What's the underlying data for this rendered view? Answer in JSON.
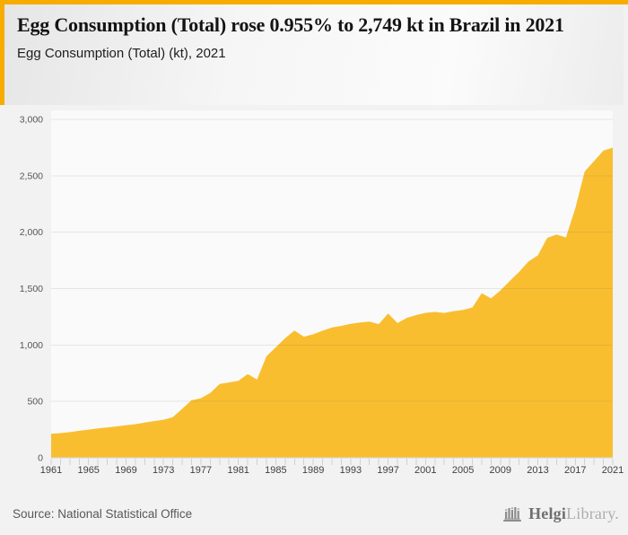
{
  "page": {
    "background_color": "#f2f2f2",
    "accent_color": "#f8ac00"
  },
  "header": {
    "title": "Egg Consumption (Total) rose 0.955% to 2,749 kt in Brazil in 2021",
    "subtitle": "Egg Consumption (Total) (kt), 2021"
  },
  "chart_data": {
    "type": "area",
    "title": "Egg Consumption (Total) (kt), 2021",
    "series_name": "Egg Consumption (Total)",
    "unit": "kt",
    "country": "Brazil",
    "x": [
      1961,
      1962,
      1963,
      1964,
      1965,
      1966,
      1967,
      1968,
      1969,
      1970,
      1971,
      1972,
      1973,
      1974,
      1975,
      1976,
      1977,
      1978,
      1979,
      1980,
      1981,
      1982,
      1983,
      1984,
      1985,
      1986,
      1987,
      1988,
      1989,
      1990,
      1991,
      1992,
      1993,
      1994,
      1995,
      1996,
      1997,
      1998,
      1999,
      2000,
      2001,
      2002,
      2003,
      2004,
      2005,
      2006,
      2007,
      2008,
      2009,
      2010,
      2011,
      2012,
      2013,
      2014,
      2015,
      2016,
      2017,
      2018,
      2019,
      2020,
      2021
    ],
    "values": [
      213,
      219,
      228,
      240,
      250,
      261,
      270,
      278,
      288,
      298,
      312,
      325,
      337,
      360,
      435,
      510,
      528,
      575,
      655,
      668,
      682,
      742,
      694,
      900,
      980,
      1060,
      1128,
      1073,
      1095,
      1127,
      1155,
      1170,
      1188,
      1200,
      1208,
      1185,
      1279,
      1195,
      1240,
      1265,
      1285,
      1293,
      1284,
      1300,
      1311,
      1332,
      1459,
      1413,
      1484,
      1568,
      1648,
      1741,
      1794,
      1950,
      1979,
      1954,
      2212,
      2538,
      2630,
      2723,
      2749
    ],
    "ylim": [
      0,
      3000
    ],
    "yticks": [
      0,
      500,
      1000,
      1500,
      2000,
      2500,
      3000
    ],
    "ytick_labels": [
      "0",
      "500",
      "1,000",
      "1,500",
      "2,000",
      "2,500",
      "3,000"
    ],
    "xtick_labels": [
      "1961",
      "1965",
      "1969",
      "1973",
      "1977",
      "1981",
      "1985",
      "1989",
      "1993",
      "1997",
      "2001",
      "2005",
      "2009",
      "2013",
      "2017",
      "2021"
    ],
    "grid": "horizontal",
    "legend": "none",
    "area_color": "#f9be30",
    "plot_background": "#fafafa",
    "grid_color": "#6b6b6b",
    "tick_color": "#c9d2dc",
    "xlabel_color": "#3f3f3f",
    "ylabel_color": "#555555",
    "baseline_color": "#d6d6d6"
  },
  "footer": {
    "source": "Source: National Statistical Office",
    "logo": {
      "icon": "bar-chart-logo-icon",
      "text_primary": "Helgi",
      "text_secondary": "Library."
    }
  }
}
